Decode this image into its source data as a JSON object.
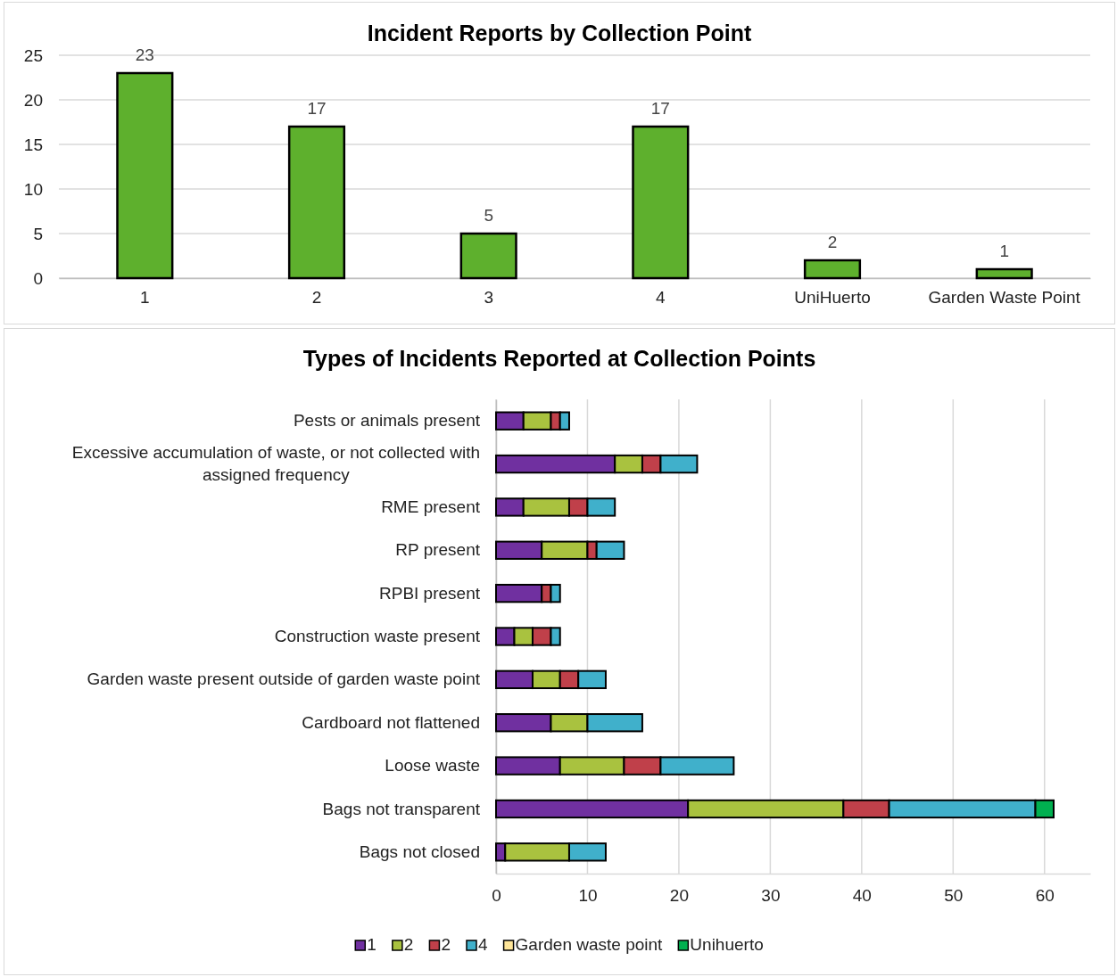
{
  "chart_data": [
    {
      "type": "bar",
      "title": "Incident Reports by Collection Point",
      "categories": [
        "1",
        "2",
        "3",
        "4",
        "UniHuerto",
        "Garden Waste Point"
      ],
      "values": [
        23,
        17,
        5,
        17,
        2,
        1
      ],
      "color": "#5eb02d",
      "ylim": [
        0,
        25
      ],
      "yticks": [
        0,
        5,
        10,
        15,
        20,
        25
      ],
      "grid": "y",
      "data_labels": true
    },
    {
      "type": "bar",
      "title": "Types of Incidents Reported at Collection Points",
      "orientation": "horizontal",
      "stacked": true,
      "categories": [
        "Pests or animals present",
        "Excessive accumulation of waste, or not collected with assigned frequency",
        "RME present",
        "RP present",
        "RPBI present",
        "Construction waste present",
        "Garden waste present outside of garden waste point",
        "Cardboard not flattened",
        "Loose waste",
        "Bags not transparent",
        "Bags not closed"
      ],
      "series": [
        {
          "name": "1",
          "color": "#7030a0",
          "values": [
            3,
            13,
            3,
            5,
            5,
            2,
            4,
            6,
            7,
            21,
            1
          ]
        },
        {
          "name": "2",
          "color": "#a9c23f",
          "values": [
            3,
            3,
            5,
            5,
            0,
            2,
            3,
            4,
            7,
            17,
            7
          ]
        },
        {
          "name": "2",
          "color": "#c0404a",
          "values": [
            1,
            2,
            2,
            1,
            1,
            2,
            2,
            0,
            4,
            5,
            0
          ]
        },
        {
          "name": "4",
          "color": "#40b0cb",
          "values": [
            1,
            4,
            3,
            3,
            1,
            1,
            3,
            6,
            8,
            16,
            4
          ]
        },
        {
          "name": "Garden waste point",
          "color": "#ffe699",
          "values": [
            0,
            0,
            0,
            0,
            0,
            0,
            0,
            0,
            0,
            0,
            0
          ]
        },
        {
          "name": "Unihuerto",
          "color": "#00b050",
          "values": [
            0,
            0,
            0,
            0,
            0,
            0,
            0,
            0,
            0,
            2,
            0
          ]
        }
      ],
      "xlim": [
        0,
        65
      ],
      "xticks": [
        0,
        10,
        20,
        30,
        40,
        50,
        60
      ],
      "grid": "x",
      "legend": "bottom"
    }
  ]
}
